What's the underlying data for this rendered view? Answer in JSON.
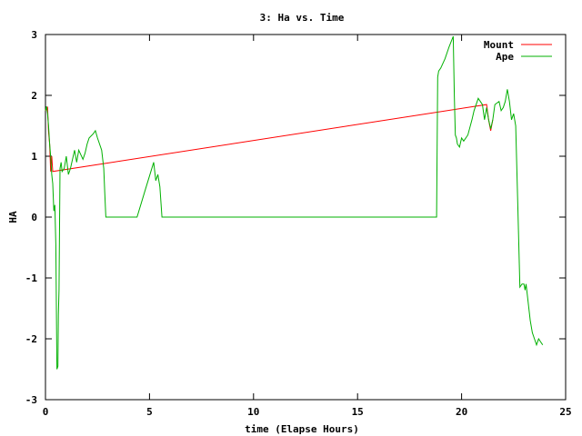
{
  "chart_data": {
    "type": "line",
    "title": "3: Ha vs. Time",
    "xlabel": "time (Elapse Hours)",
    "ylabel": "HA",
    "xlim": [
      0,
      25
    ],
    "ylim": [
      -3,
      3
    ],
    "xticks": [
      0,
      5,
      10,
      15,
      20,
      25
    ],
    "yticks": [
      -3,
      -2,
      -1,
      0,
      1,
      2,
      3
    ],
    "xtick_labels": [
      "0",
      "5",
      "10",
      "15",
      "20",
      "25"
    ],
    "ytick_labels": [
      "-3",
      "-2",
      "-1",
      "0",
      "1",
      "2",
      "3"
    ],
    "grid": false,
    "legend_position": "top-right",
    "series": [
      {
        "name": "Mount",
        "color": "#ff0000",
        "x": [
          0,
          0.1,
          0.15,
          0.2,
          0.25,
          0.3,
          0.35,
          21.2,
          21.3,
          21.4,
          21.5
        ],
        "y": [
          1.75,
          1.8,
          1.4,
          1.2,
          0.75,
          1.0,
          0.75,
          1.85,
          1.6,
          1.42,
          1.6
        ]
      },
      {
        "name": "Ape",
        "color": "#00b000",
        "x": [
          0,
          0.05,
          0.1,
          0.15,
          0.2,
          0.25,
          0.3,
          0.35,
          0.4,
          0.45,
          0.5,
          0.55,
          0.6,
          0.62,
          0.65,
          0.7,
          0.75,
          0.8,
          0.9,
          1.0,
          1.1,
          1.2,
          1.4,
          1.5,
          1.6,
          1.8,
          1.9,
          2.0,
          2.1,
          2.3,
          2.4,
          2.5,
          2.7,
          2.8,
          2.85,
          2.9,
          4.2,
          4.4,
          4.8,
          5.2,
          5.3,
          5.4,
          5.5,
          5.6,
          5.7,
          18.8,
          18.85,
          18.9,
          19.0,
          19.2,
          19.4,
          19.6,
          19.65,
          19.7,
          19.75,
          19.8,
          19.9,
          20.0,
          20.1,
          20.3,
          20.5,
          20.6,
          20.8,
          21.0,
          21.1,
          21.2,
          21.3,
          21.4,
          21.5,
          21.6,
          21.8,
          21.9,
          22.0,
          22.1,
          22.2,
          22.3,
          22.4,
          22.5,
          22.6,
          22.7,
          22.8,
          22.9,
          23.0,
          23.05,
          23.1,
          23.2,
          23.3,
          23.4,
          23.5,
          23.6,
          23.7,
          23.8,
          23.9
        ],
        "y": [
          1.75,
          1.82,
          1.7,
          1.5,
          1.2,
          1.0,
          0.7,
          0.55,
          0.1,
          0.2,
          -0.45,
          -2.5,
          -2.45,
          -1.6,
          -1.2,
          0.8,
          0.9,
          0.75,
          0.8,
          1.0,
          0.7,
          0.8,
          1.1,
          0.9,
          1.1,
          0.95,
          1.05,
          1.2,
          1.3,
          1.37,
          1.42,
          1.3,
          1.1,
          0.8,
          0.4,
          0.0,
          0.0,
          0.0,
          0.45,
          0.9,
          0.6,
          0.7,
          0.5,
          0.0,
          0.0,
          0.0,
          2.3,
          2.4,
          2.45,
          2.6,
          2.8,
          2.97,
          2.0,
          1.35,
          1.3,
          1.2,
          1.15,
          1.3,
          1.25,
          1.35,
          1.6,
          1.75,
          1.95,
          1.85,
          1.6,
          1.8,
          1.6,
          1.45,
          1.6,
          1.85,
          1.9,
          1.75,
          1.8,
          1.9,
          2.1,
          1.9,
          1.6,
          1.7,
          1.5,
          0.2,
          -1.15,
          -1.1,
          -1.1,
          -1.2,
          -1.1,
          -1.4,
          -1.7,
          -1.9,
          -2.0,
          -2.1,
          -2.0,
          -2.05,
          -2.1
        ]
      }
    ]
  }
}
